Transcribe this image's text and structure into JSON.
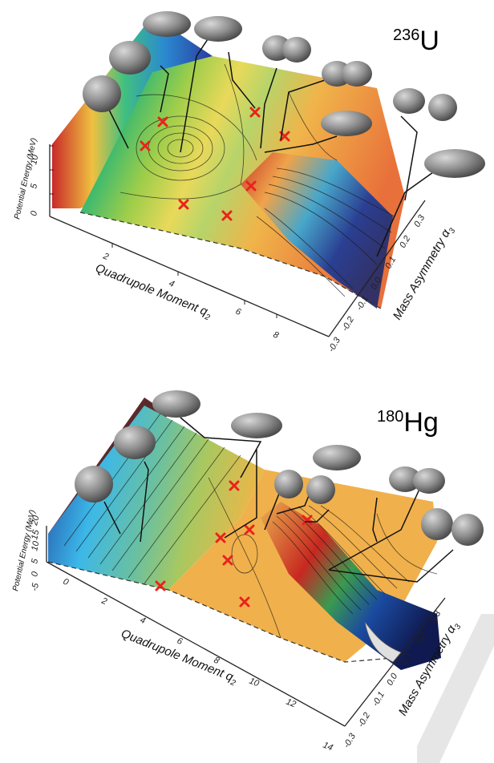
{
  "panels": [
    {
      "nucleus_mass": "236",
      "nucleus_symbol": "U",
      "y_axis_label": "Potential Energy (MeV)",
      "y_ticks": [
        "0",
        "5",
        "10"
      ],
      "x_axis_label": "Quadrupole Moment q",
      "x_axis_sub": "2",
      "x_ticks": [
        "2",
        "4",
        "6",
        "8"
      ],
      "z_axis_label": "Mass Asymmetry α",
      "z_axis_sub": "3",
      "z_ticks": [
        "-0.3",
        "-0.2",
        "-0.1",
        "0.0",
        "0.1",
        "0.2",
        "0.3"
      ]
    },
    {
      "nucleus_mass": "180",
      "nucleus_symbol": "Hg",
      "y_axis_label": "Potential Energy (MeV)",
      "y_ticks": [
        "-5",
        "0",
        "5",
        "10",
        "15",
        "20"
      ],
      "x_axis_label": "Quadrupole Moment q",
      "x_axis_sub": "2",
      "x_ticks": [
        "0",
        "2",
        "4",
        "6",
        "8",
        "10",
        "12",
        "14"
      ],
      "z_axis_label": "Mass Asymmetry α",
      "z_axis_sub": "3",
      "z_ticks": [
        "-0.3",
        "-0.2",
        "-0.1",
        "0.0",
        "0.1",
        "0.2",
        "0.3"
      ]
    }
  ],
  "colors": {
    "marker": "#e8231c",
    "shape_fill": "#8f8f8f",
    "axis": "#222222"
  }
}
